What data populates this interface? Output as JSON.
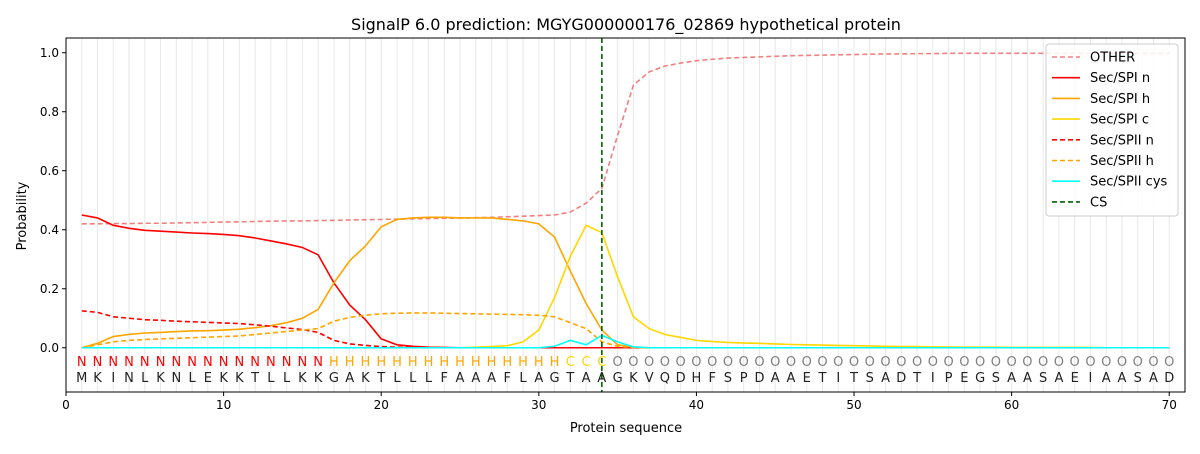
{
  "chart_data": {
    "type": "line",
    "title": "SignalP 6.0 prediction: MGYG000000176_02869 hypothetical protein",
    "xlabel": "Protein sequence",
    "ylabel": "Probability",
    "xlim": [
      0,
      71
    ],
    "ylim": [
      -0.15,
      1.05
    ],
    "xticks": [
      0,
      10,
      20,
      30,
      40,
      50,
      60,
      70
    ],
    "yticks": [
      "0.0",
      "0.2",
      "0.4",
      "0.6",
      "0.8",
      "1.0"
    ],
    "legend_position": "top-right",
    "sequence": "MKINLKNLEKKTLLKKGAKTLLLFAAAFLAGTAAGKVQDHFSPDAAETITSADTIPEGSAASAEIAASAD",
    "labels": "NNNNNNNNNNNNNNNNHHHHHHHHHHHHHHHCCCOOOOOOOOOOOOOOOOOOOOOOOOOOOOOOOOOOOO",
    "label_colors": {
      "N": "#ff0000",
      "H": "#ffa500",
      "C": "#ffd700",
      "O": "#808080"
    },
    "cs_position": 34,
    "series": [
      {
        "name": "OTHER",
        "color": "#f08080",
        "dash": true,
        "values": [
          0.42,
          0.42,
          0.421,
          0.421,
          0.422,
          0.422,
          0.423,
          0.424,
          0.425,
          0.426,
          0.427,
          0.428,
          0.429,
          0.43,
          0.43,
          0.431,
          0.432,
          0.433,
          0.434,
          0.435,
          0.436,
          0.437,
          0.438,
          0.439,
          0.44,
          0.441,
          0.442,
          0.444,
          0.446,
          0.448,
          0.45,
          0.46,
          0.49,
          0.54,
          0.72,
          0.89,
          0.935,
          0.955,
          0.965,
          0.973,
          0.978,
          0.982,
          0.984,
          0.986,
          0.988,
          0.99,
          0.991,
          0.992,
          0.993,
          0.994,
          0.995,
          0.996,
          0.996,
          0.997,
          0.997,
          0.998,
          0.998,
          0.998,
          0.998,
          0.998,
          0.998,
          0.998,
          0.998,
          0.998,
          0.998,
          0.998,
          0.998,
          0.998,
          0.998,
          0.998
        ]
      },
      {
        "name": "Sec/SPI n",
        "color": "#ff0000",
        "dash": false,
        "values": [
          0.45,
          0.44,
          0.415,
          0.405,
          0.398,
          0.395,
          0.392,
          0.389,
          0.387,
          0.384,
          0.38,
          0.372,
          0.362,
          0.352,
          0.34,
          0.315,
          0.22,
          0.145,
          0.095,
          0.03,
          0.01,
          0.005,
          0.002,
          0.001,
          0,
          0,
          0,
          0,
          0,
          0,
          0,
          0,
          0,
          0,
          0,
          0,
          0,
          0,
          0,
          0,
          0,
          0,
          0,
          0,
          0,
          0,
          0,
          0,
          0,
          0,
          0,
          0,
          0,
          0,
          0,
          0,
          0,
          0,
          0,
          0,
          0,
          0,
          0,
          0,
          0,
          0,
          0,
          0,
          0,
          0
        ]
      },
      {
        "name": "Sec/SPI h",
        "color": "#ffa500",
        "dash": false,
        "values": [
          0,
          0.015,
          0.038,
          0.045,
          0.05,
          0.052,
          0.055,
          0.057,
          0.058,
          0.06,
          0.063,
          0.068,
          0.075,
          0.085,
          0.1,
          0.13,
          0.22,
          0.295,
          0.345,
          0.41,
          0.435,
          0.44,
          0.442,
          0.442,
          0.44,
          0.44,
          0.44,
          0.435,
          0.43,
          0.42,
          0.375,
          0.26,
          0.15,
          0.06,
          0.01,
          0.002,
          0,
          0,
          0,
          0,
          0,
          0,
          0,
          0,
          0,
          0,
          0,
          0,
          0,
          0,
          0,
          0,
          0,
          0,
          0,
          0,
          0,
          0,
          0,
          0,
          0,
          0,
          0,
          0,
          0,
          0,
          0,
          0,
          0,
          0
        ]
      },
      {
        "name": "Sec/SPI c",
        "color": "#ffd700",
        "dash": false,
        "values": [
          0,
          0,
          0,
          0,
          0,
          0,
          0,
          0,
          0,
          0,
          0,
          0,
          0,
          0,
          0,
          0,
          0,
          0,
          0,
          0,
          0,
          0,
          0,
          0,
          0,
          0.002,
          0.004,
          0.007,
          0.02,
          0.06,
          0.17,
          0.31,
          0.415,
          0.39,
          0.24,
          0.105,
          0.065,
          0.045,
          0.035,
          0.025,
          0.021,
          0.018,
          0.016,
          0.015,
          0.013,
          0.011,
          0.01,
          0.009,
          0.008,
          0.007,
          0.006,
          0.005,
          0.004,
          0.004,
          0.003,
          0.003,
          0.002,
          0.002,
          0.002,
          0.001,
          0.001,
          0.001,
          0.001,
          0.001,
          0.001,
          0,
          0,
          0,
          0,
          0
        ]
      },
      {
        "name": "Sec/SPII n",
        "color": "#ff0000",
        "dash": true,
        "values": [
          0.125,
          0.12,
          0.105,
          0.1,
          0.095,
          0.093,
          0.09,
          0.088,
          0.086,
          0.084,
          0.082,
          0.078,
          0.073,
          0.067,
          0.062,
          0.052,
          0.025,
          0.013,
          0.008,
          0.004,
          0.002,
          0.001,
          0,
          0,
          0,
          0,
          0,
          0,
          0,
          0,
          0,
          0,
          0,
          0,
          0,
          0,
          0,
          0,
          0,
          0,
          0,
          0,
          0,
          0,
          0,
          0,
          0,
          0,
          0,
          0,
          0,
          0,
          0,
          0,
          0,
          0,
          0,
          0,
          0,
          0,
          0,
          0,
          0,
          0,
          0,
          0,
          0,
          0,
          0,
          0
        ]
      },
      {
        "name": "Sec/SPII h",
        "color": "#ffa500",
        "dash": true,
        "values": [
          0,
          0.01,
          0.02,
          0.025,
          0.028,
          0.03,
          0.032,
          0.034,
          0.036,
          0.038,
          0.04,
          0.045,
          0.05,
          0.055,
          0.06,
          0.065,
          0.09,
          0.103,
          0.11,
          0.115,
          0.117,
          0.118,
          0.118,
          0.117,
          0.116,
          0.115,
          0.114,
          0.113,
          0.112,
          0.11,
          0.105,
          0.085,
          0.065,
          0.02,
          0.005,
          0.001,
          0,
          0,
          0,
          0,
          0,
          0,
          0,
          0,
          0,
          0,
          0,
          0,
          0,
          0,
          0,
          0,
          0,
          0,
          0,
          0,
          0,
          0,
          0,
          0,
          0,
          0,
          0,
          0,
          0,
          0,
          0,
          0,
          0,
          0
        ]
      },
      {
        "name": "Sec/SPII cys",
        "color": "#00ffff",
        "dash": false,
        "values": [
          0,
          0,
          0,
          0,
          0,
          0,
          0,
          0,
          0,
          0,
          0,
          0,
          0,
          0,
          0,
          0,
          0,
          0,
          0,
          0,
          0,
          0,
          0,
          0,
          0,
          0,
          0,
          0,
          0,
          0,
          0.005,
          0.025,
          0.01,
          0.042,
          0.02,
          0.003,
          0,
          0,
          0,
          0,
          0,
          0,
          0,
          0,
          0,
          0,
          0,
          0,
          0,
          0,
          0,
          0,
          0,
          0,
          0,
          0,
          0,
          0,
          0,
          0,
          0,
          0,
          0,
          0,
          0,
          0,
          0,
          0,
          0,
          0
        ]
      }
    ],
    "cs_legend": {
      "name": "CS",
      "color": "#006400"
    }
  }
}
